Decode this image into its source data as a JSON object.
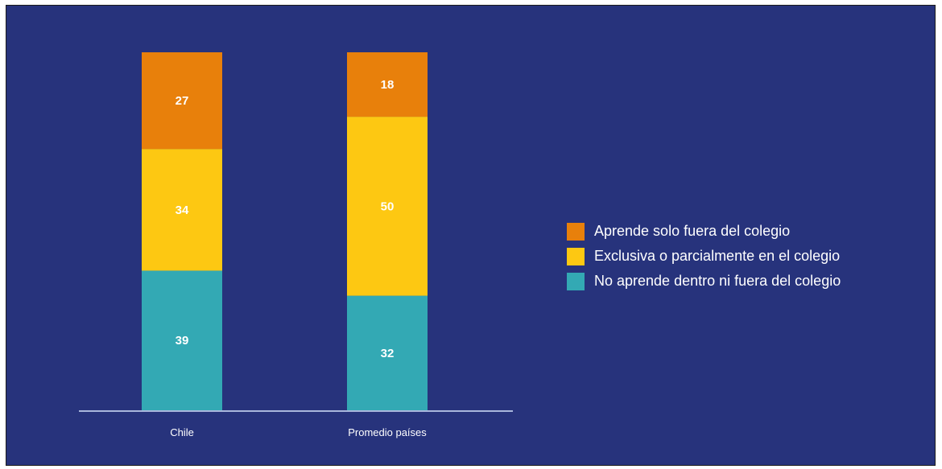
{
  "colors": {
    "background": "#27337c",
    "axis": "#a9b7dc",
    "aprende_solo_fuera": "#e8800b",
    "exclusiva_parcial": "#fdc812",
    "no_aprende": "#33a9b4"
  },
  "chart_data": {
    "type": "bar",
    "stacked": true,
    "categories": [
      "Chile",
      "Promedio países"
    ],
    "series": [
      {
        "name": "No aprende dentro ni fuera del colegio",
        "values": [
          39,
          32
        ],
        "color": "#33a9b4"
      },
      {
        "name": "Exclusiva o parcialmente en el colegio",
        "values": [
          34,
          50
        ],
        "color": "#fdc812"
      },
      {
        "name": "Aprende solo fuera del colegio",
        "values": [
          27,
          18
        ],
        "color": "#e8800b"
      }
    ],
    "legend_order": [
      "Aprende solo fuera del colegio",
      "Exclusiva o parcialmente en el colegio",
      "No aprende dentro ni fuera del colegio"
    ],
    "legend_position": "right",
    "ylim": [
      0,
      100
    ],
    "title": "",
    "xlabel": "",
    "ylabel": "",
    "grid": false
  }
}
